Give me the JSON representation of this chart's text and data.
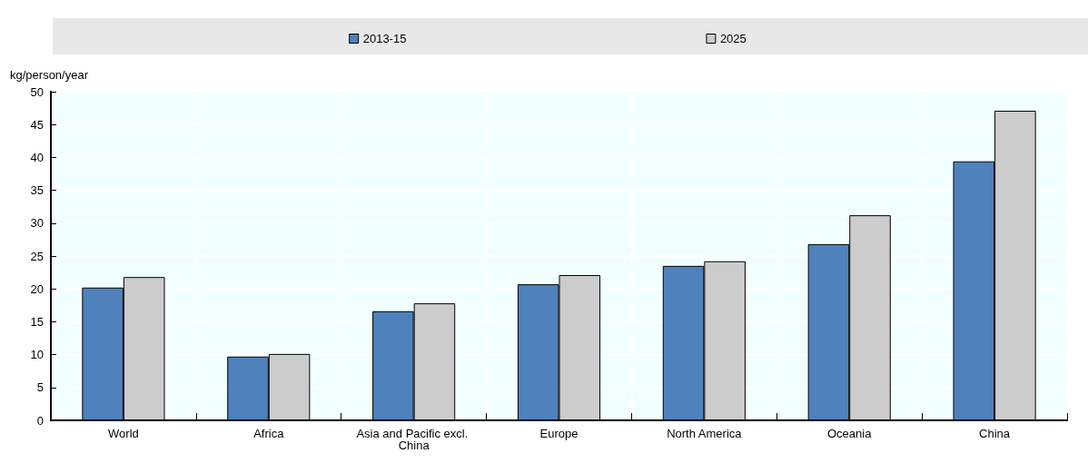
{
  "chart_data": {
    "type": "bar",
    "ylabel": "kg/person/year",
    "categories": [
      "World",
      "Africa",
      "Asia and Pacific excl. China",
      "Europe",
      "North America",
      "Oceania",
      "China"
    ],
    "series": [
      {
        "name": "2013-15",
        "color": "#4f81bd",
        "values": [
          20.2,
          9.7,
          16.6,
          20.7,
          23.5,
          26.8,
          39.4
        ]
      },
      {
        "name": "2025",
        "color": "#cccccc",
        "values": [
          21.8,
          10.1,
          17.8,
          22.1,
          24.2,
          31.2,
          47.1
        ]
      }
    ],
    "ylim": [
      0,
      50
    ],
    "yticks": [
      0,
      5,
      10,
      15,
      20,
      25,
      30,
      35,
      40,
      45,
      50
    ],
    "grid": true,
    "legend": "top"
  }
}
